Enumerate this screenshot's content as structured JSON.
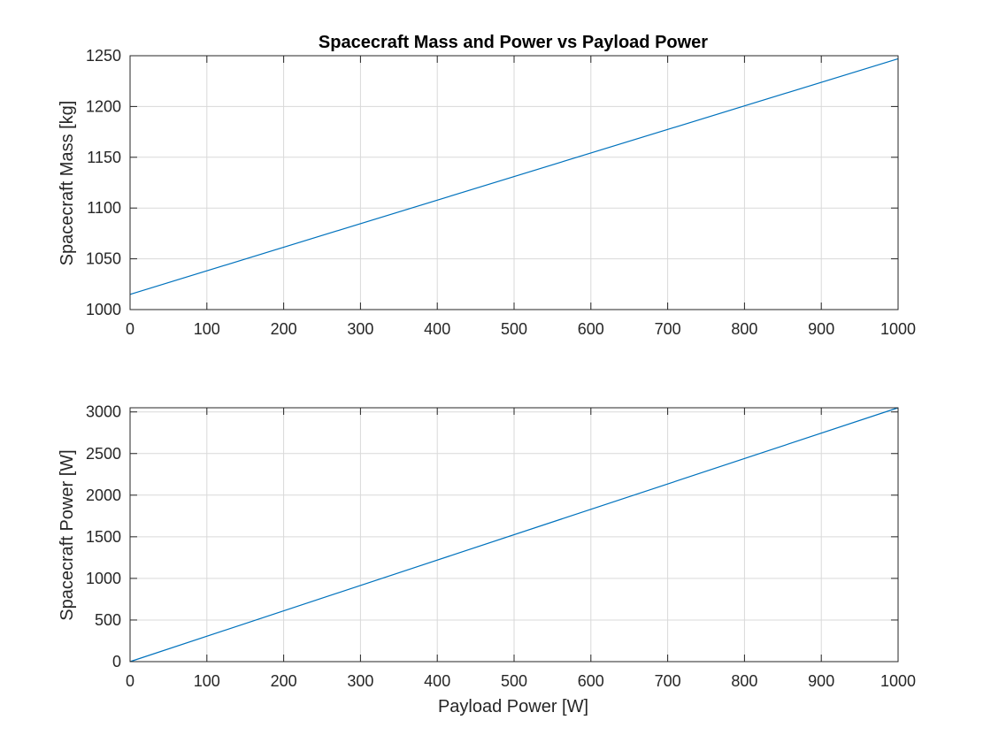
{
  "chart_data": [
    {
      "type": "line",
      "title": "Spacecraft Mass and Power vs Payload Power",
      "xlabel": "",
      "ylabel": "Spacecraft Mass [kg]",
      "xlim": [
        0,
        1000
      ],
      "ylim": [
        1000,
        1250
      ],
      "xticks": [
        0,
        100,
        200,
        300,
        400,
        500,
        600,
        700,
        800,
        900,
        1000
      ],
      "yticks": [
        1000,
        1050,
        1100,
        1150,
        1200,
        1250
      ],
      "grid": true,
      "series": [
        {
          "name": "Spacecraft Mass",
          "color": "#0072BD",
          "x": [
            0,
            1000
          ],
          "y": [
            1015,
            1247
          ]
        }
      ]
    },
    {
      "type": "line",
      "title": "",
      "xlabel": "Payload Power [W]",
      "ylabel": "Spacecraft Power [W]",
      "xlim": [
        0,
        1000
      ],
      "ylim": [
        0,
        3050
      ],
      "xticks": [
        0,
        100,
        200,
        300,
        400,
        500,
        600,
        700,
        800,
        900,
        1000
      ],
      "yticks": [
        0,
        500,
        1000,
        1500,
        2000,
        2500,
        3000
      ],
      "grid": true,
      "series": [
        {
          "name": "Spacecraft Power",
          "color": "#0072BD",
          "x": [
            0,
            1000
          ],
          "y": [
            0,
            3050
          ]
        }
      ]
    }
  ]
}
